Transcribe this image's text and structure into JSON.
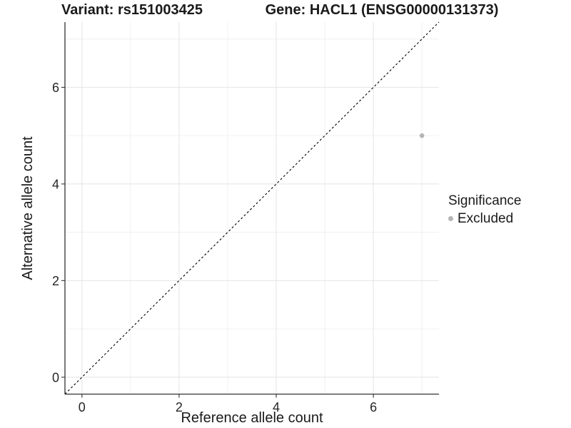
{
  "header": {
    "variant_title": "Variant: rs151003425",
    "gene_title": "Gene: HACL1 (ENSG00000131373)"
  },
  "chart_data": {
    "type": "scatter",
    "title": "Variant: rs151003425    Gene: HACL1 (ENSG00000131373)",
    "xlabel": "Reference allele count",
    "ylabel": "Alternative allele count",
    "xlim": [
      -0.35,
      7.35
    ],
    "ylim": [
      -0.35,
      7.35
    ],
    "x_ticks": [
      0,
      2,
      4,
      6
    ],
    "y_ticks": [
      0,
      2,
      4,
      6
    ],
    "x_minor_ticks": [
      1,
      3,
      5,
      7
    ],
    "y_minor_ticks": [
      1,
      3,
      5,
      7
    ],
    "grid": true,
    "points": [
      {
        "x": 7,
        "y": 5,
        "series": "Excluded"
      }
    ],
    "reference_line": {
      "kind": "identity",
      "slope": 1,
      "intercept": 0,
      "style": "dashed"
    },
    "legend": {
      "title": "Significance",
      "position": "right",
      "items": [
        {
          "label": "Excluded",
          "color": "#b5b5b5"
        }
      ]
    },
    "colors": {
      "point": "#b5b5b5",
      "grid_major": "#e4e4e4",
      "grid_minor": "#f0f0f0",
      "axis_line": "#333333",
      "tick_mark": "#333333",
      "reference_line": "#000000"
    }
  },
  "legend": {
    "title": "Significance",
    "items": [
      {
        "label": "Excluded"
      }
    ]
  }
}
